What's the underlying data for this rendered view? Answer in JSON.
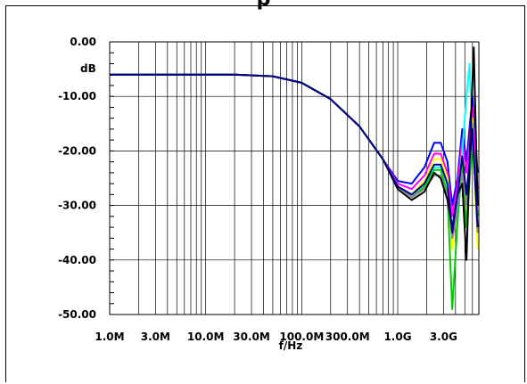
{
  "chart_data": {
    "type": "line",
    "title": "p",
    "xlabel": "f/Hz",
    "ylabel": "dB",
    "xscale": "log",
    "xlim": [
      1000000,
      7000000000
    ],
    "ylim": [
      -50,
      0
    ],
    "grid": true,
    "x_ticks": [
      {
        "value": 1000000,
        "label": "1.0M"
      },
      {
        "value": 3000000,
        "label": "3.0M"
      },
      {
        "value": 10000000,
        "label": "10.0M"
      },
      {
        "value": 30000000,
        "label": "30.0M"
      },
      {
        "value": 100000000,
        "label": "100.0M"
      },
      {
        "value": 300000000,
        "label": "300.0M"
      },
      {
        "value": 1000000000,
        "label": "1.0G"
      },
      {
        "value": 3000000000,
        "label": "3.0G"
      }
    ],
    "y_ticks": [
      {
        "value": 0,
        "label": "0.00"
      },
      {
        "value": -10,
        "label": "-10.00"
      },
      {
        "value": -20,
        "label": "-20.00"
      },
      {
        "value": -30,
        "label": "-30.00"
      },
      {
        "value": -40,
        "label": "-40.00"
      },
      {
        "value": -50,
        "label": "-50.00"
      }
    ],
    "series": [
      {
        "color": "#0000ff",
        "x": [
          1000000,
          20000000,
          50000000,
          100000000,
          200000000,
          400000000,
          700000000,
          1000000000,
          1400000000,
          1900000000,
          2400000000,
          2800000000,
          3300000000,
          3700000000,
          4200000000,
          4700000000,
          5200000000,
          6000000000,
          6800000000
        ],
        "y": [
          -6,
          -6,
          -6.3,
          -7.5,
          -10.5,
          -15.5,
          -21.5,
          -25.5,
          -26,
          -23,
          -18.5,
          -18.5,
          -22,
          -30,
          -25,
          -16,
          -22,
          -10,
          -24
        ]
      },
      {
        "color": "#ff00ff",
        "x": [
          1000000,
          20000000,
          50000000,
          100000000,
          200000000,
          400000000,
          700000000,
          1000000000,
          1400000000,
          1900000000,
          2400000000,
          2800000000,
          3300000000,
          3700000000,
          4200000000,
          4700000000,
          5200000000,
          6000000000,
          6800000000
        ],
        "y": [
          -6,
          -6,
          -6.3,
          -7.5,
          -10.5,
          -15.5,
          -21.5,
          -26,
          -27,
          -24.5,
          -20.5,
          -20.5,
          -24,
          -32,
          -26,
          -18,
          -24,
          -12,
          -27
        ]
      },
      {
        "color": "#ffff00",
        "x": [
          1000000,
          20000000,
          50000000,
          100000000,
          200000000,
          400000000,
          700000000,
          1000000000,
          1400000000,
          1900000000,
          2400000000,
          2800000000,
          3300000000,
          3700000000,
          4200000000,
          4700000000,
          5200000000,
          6000000000,
          6800000000
        ],
        "y": [
          -6,
          -6,
          -6.3,
          -7.5,
          -10.5,
          -15.5,
          -21.5,
          -26.5,
          -28,
          -25.5,
          -21.5,
          -21.5,
          -25,
          -38,
          -29,
          -20,
          -32,
          -14,
          -38
        ]
      },
      {
        "color": "#00ffff",
        "x": [
          1000000,
          20000000,
          50000000,
          100000000,
          200000000,
          400000000,
          700000000,
          1000000000,
          1400000000,
          1900000000,
          2400000000,
          2800000000,
          3300000000,
          3700000000,
          4200000000,
          4700000000,
          5200000000,
          5600000000,
          6000000000,
          6800000000
        ],
        "y": [
          -6,
          -6,
          -6.3,
          -7.5,
          -10.5,
          -15.5,
          -21.5,
          -26.5,
          -28,
          -26,
          -23,
          -23,
          -27,
          -36,
          -30,
          -20,
          -10,
          -4,
          -18,
          -28
        ]
      },
      {
        "color": "#00cc00",
        "x": [
          1000000,
          20000000,
          50000000,
          100000000,
          200000000,
          400000000,
          700000000,
          1000000000,
          1400000000,
          1900000000,
          2400000000,
          2800000000,
          3300000000,
          3700000000,
          4200000000,
          4700000000,
          5200000000,
          6000000000,
          6800000000
        ],
        "y": [
          -6,
          -6,
          -6.3,
          -7.5,
          -10.5,
          -15.5,
          -21.5,
          -26.5,
          -28.5,
          -26.5,
          -23.5,
          -23.5,
          -28,
          -49,
          -33,
          -22,
          -34,
          -18,
          -32
        ]
      },
      {
        "color": "#888888",
        "x": [
          1000000,
          20000000,
          50000000,
          100000000,
          200000000,
          400000000,
          700000000,
          1000000000,
          1400000000,
          1900000000,
          2400000000,
          2800000000,
          3300000000,
          3700000000,
          4200000000,
          4700000000,
          5200000000,
          6000000000,
          6800000000
        ],
        "y": [
          -6,
          -6,
          -6.3,
          -7.5,
          -10.5,
          -15.5,
          -21.5,
          -26.5,
          -28.5,
          -27,
          -24.5,
          -24.5,
          -28.5,
          -36,
          -31,
          -24,
          -30,
          -15,
          -35
        ]
      },
      {
        "color": "#000000",
        "x": [
          1000000,
          20000000,
          50000000,
          100000000,
          200000000,
          400000000,
          700000000,
          1000000000,
          1400000000,
          1900000000,
          2400000000,
          2800000000,
          3300000000,
          3700000000,
          4200000000,
          4700000000,
          5200000000,
          5700000000,
          6200000000,
          6800000000
        ],
        "y": [
          -6,
          -6,
          -6.3,
          -7.5,
          -10.5,
          -15.5,
          -21.5,
          -27,
          -29,
          -27.5,
          -24,
          -25,
          -29,
          -34,
          -28,
          -26,
          -40,
          -18,
          -1,
          -30
        ]
      },
      {
        "color": "#00008b",
        "x": [
          1000000,
          20000000,
          50000000,
          100000000,
          200000000,
          400000000,
          700000000,
          1000000000,
          1400000000,
          1900000000,
          2400000000,
          2800000000,
          3300000000,
          3700000000,
          4200000000,
          4700000000,
          5200000000,
          6000000000,
          6800000000
        ],
        "y": [
          -6,
          -6,
          -6.3,
          -7.5,
          -10.5,
          -15.5,
          -21.5,
          -26.5,
          -28,
          -26,
          -22.5,
          -22.5,
          -26,
          -35,
          -28,
          -21,
          -28,
          -16,
          -34
        ]
      }
    ]
  }
}
